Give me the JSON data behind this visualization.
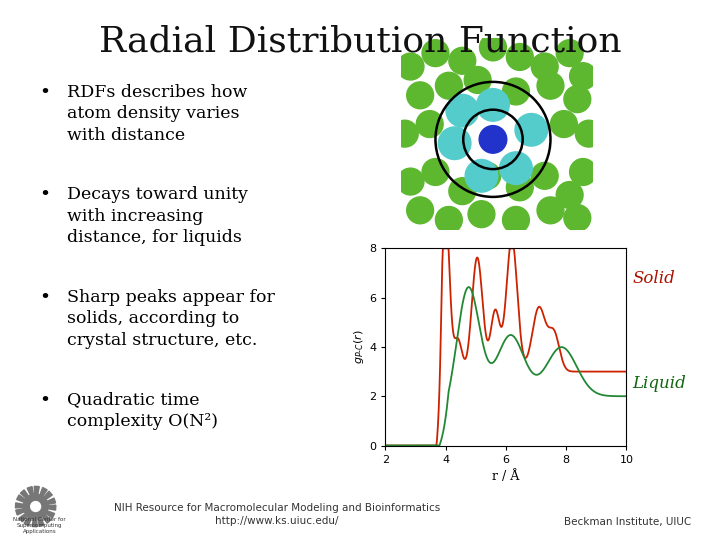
{
  "title": "Radial Distribution Function",
  "title_fontsize": 26,
  "title_font": "serif",
  "background_color": "#ffffff",
  "bullet_points": [
    "RDFs describes how\natom density varies\nwith distance",
    "Decays toward unity\nwith increasing\ndistance, for liquids",
    "Sharp peaks appear for\nsolids, according to\ncrystal structure, etc.",
    "Quadratic time\ncomplexity O(N²)"
  ],
  "bullet_fontsize": 12.5,
  "bullet_color": "#000000",
  "footer_left": "NIH Resource for Macromolecular Modeling and Bioinformatics\nhttp://www.ks.uiuc.edu/",
  "footer_right": "Beckman Institute, UIUC",
  "footer_fontsize": 7.5,
  "plot_xlabel": "r / Å",
  "plot_xlim": [
    2,
    10
  ],
  "plot_ylim": [
    0,
    8
  ],
  "plot_xticks": [
    2,
    4,
    6,
    8,
    10
  ],
  "plot_yticks": [
    0,
    2,
    4,
    6,
    8
  ],
  "solid_color": "#cc2200",
  "liquid_color": "#228833",
  "solid_label": "Solid",
  "liquid_label": "Liquid",
  "solid_label_color": "#aa1100",
  "liquid_label_color": "#116611"
}
